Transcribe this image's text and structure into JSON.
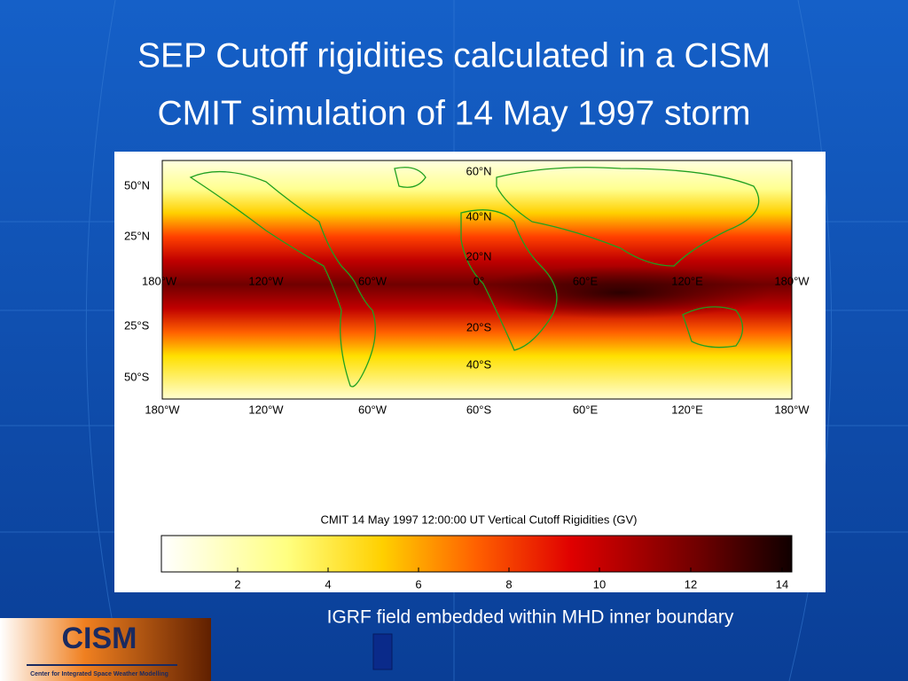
{
  "title": {
    "line1": "SEP Cutoff rigidities calculated in a CISM",
    "line2": "CMIT simulation of 14 May 1997 storm"
  },
  "map": {
    "left_labels": [
      "50°N",
      "25°N",
      "180°W",
      "25°S",
      "50°S"
    ],
    "inner_lat_labels": [
      "60°N",
      "40°N",
      "20°N",
      "20°S",
      "40°S"
    ],
    "middle_labels": [
      "120°W",
      "60°W",
      "0°",
      "60°E",
      "120°E",
      "180°W"
    ],
    "bottom_labels": [
      "180°W",
      "120°W",
      "60°W",
      "60°S",
      "60°E",
      "120°E",
      "180°W"
    ]
  },
  "colorbar": {
    "title": "CMIT 14 May 1997 12:00:00 UT Vertical Cutoff Rigidities (GV)",
    "ticks": [
      "2",
      "4",
      "6",
      "8",
      "10",
      "12",
      "14"
    ]
  },
  "caption": "IGRF field embedded within MHD inner boundary",
  "logo": {
    "name": "CISM",
    "subtitle": "Center for Integrated Space Weather Modelling"
  }
}
